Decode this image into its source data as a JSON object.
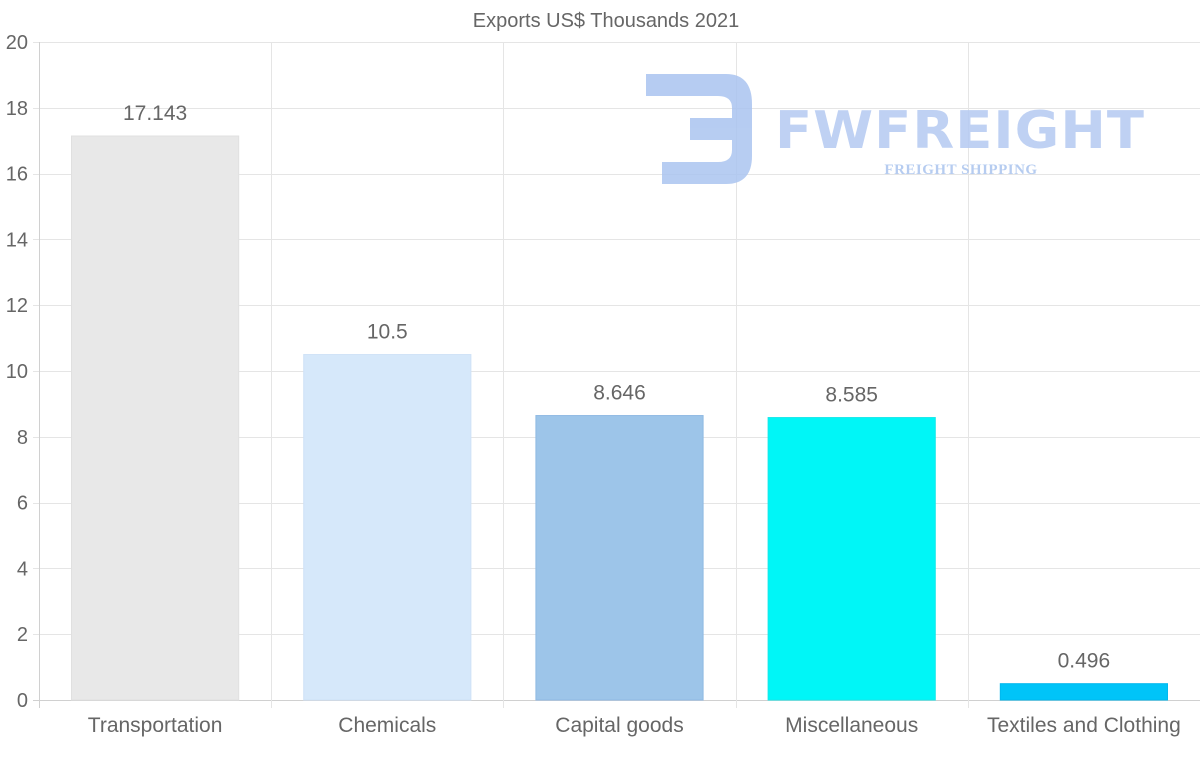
{
  "chart_data": {
    "type": "bar",
    "title": "Exports US$ Thousands 2021",
    "categories": [
      "Transportation",
      "Chemicals",
      "Capital goods",
      "Miscellaneous",
      "Textiles and Clothing"
    ],
    "values": [
      17.143,
      10.5,
      8.646,
      8.585,
      0.496
    ],
    "value_labels": [
      "17.143",
      "10.5",
      "8.646",
      "8.585",
      "0.496"
    ],
    "bar_colors": [
      "#e8e8e8",
      "#d6e8fa",
      "#9dc5e9",
      "#00f6f7",
      "#00c4f8"
    ],
    "bar_border_colors": [
      "#e0e0e0",
      "#cfe2f7",
      "#8fb9e3",
      "#14e8ea",
      "#00b8ee"
    ],
    "xlabel": "",
    "ylabel": "",
    "ylim": [
      0,
      20
    ],
    "y_ticks": [
      0,
      2,
      4,
      6,
      8,
      10,
      12,
      14,
      16,
      18,
      20
    ],
    "grid": true,
    "legend": "none",
    "colors": {
      "text": "#666666",
      "grid": "#e5e5e5",
      "axis": "#d0d0d0"
    }
  },
  "watermark": {
    "name": "FWFREIGHT",
    "tagline": "FREIGHT SHIPPING"
  }
}
